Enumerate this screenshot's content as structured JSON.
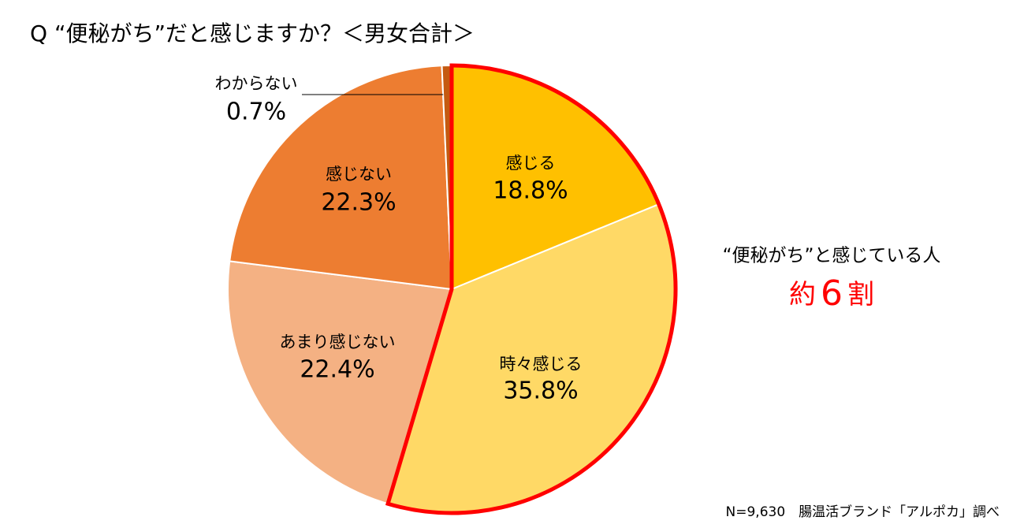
{
  "chart_data": {
    "type": "pie",
    "title": "Q “便秘がち”だと感じますか？＜男女合計＞",
    "categories": [
      "感じる",
      "時々感じる",
      "あまり感じない",
      "感じない",
      "わからない"
    ],
    "values": [
      18.8,
      35.8,
      22.4,
      22.3,
      0.7
    ],
    "value_labels": [
      "18.8%",
      "35.8%",
      "22.4%",
      "22.3%",
      "0.7%"
    ],
    "colors": [
      "#FFC000",
      "#FFD966",
      "#F4B183",
      "#ED7D31",
      "#C55A11"
    ],
    "highlight": {
      "indices": [
        0,
        1
      ],
      "color": "#FF0000"
    },
    "annotation": {
      "line1": "“便秘がち”と感じている人",
      "prefix": "約",
      "number": "6",
      "suffix": "割",
      "color": "#FF0000"
    },
    "source": "N=9,630　腸温活ブランド「アルポカ」調べ"
  }
}
